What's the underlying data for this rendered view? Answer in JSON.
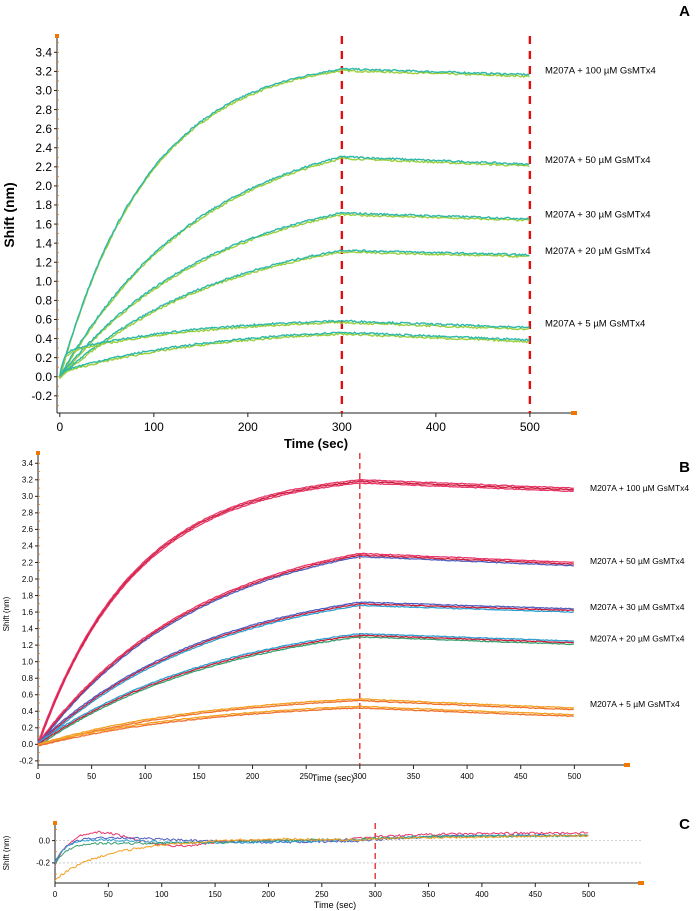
{
  "colors": {
    "axis": "#222222",
    "orange_tick": "#f07800",
    "red_dash": "#e01010",
    "grey_ref": "#aaaaaa",
    "A_series": [
      "#2eb8a8",
      "#9ccf3c"
    ],
    "B_series": [
      "#e8356a",
      "#cc1f3a",
      "#5060c0",
      "#30a0d0",
      "#3aa070",
      "#f07030",
      "#f4a020"
    ]
  },
  "chart_data": [
    {
      "panel_label": "A",
      "type": "line",
      "xlabel": "Time (sec)",
      "ylabel": "Shift (nm)",
      "xlim": [
        -3,
        548
      ],
      "ylim": [
        -0.38,
        3.55
      ],
      "xticks": [
        "0",
        "100",
        "200",
        "300",
        "400",
        "500"
      ],
      "yticks": [
        "-0.2",
        "0.0",
        "0.2",
        "0.4",
        "0.6",
        "0.8",
        "1.0",
        "1.2",
        "1.4",
        "1.6",
        "1.8",
        "2.0",
        "2.2",
        "2.4",
        "2.6",
        "2.8",
        "3.0",
        "3.2",
        "3.4"
      ],
      "vlines": [
        300,
        500
      ],
      "association_end": 300,
      "dissociation_end": 500,
      "series": [
        {
          "name": "M207A + 100 µM GsMTx4",
          "label": "M207A + 100 µM GsMTx4",
          "peak": 3.22,
          "end": 3.16,
          "init": 0.0,
          "rate": 0.0105
        },
        {
          "name": "M207A + 50 µM GsMTx4",
          "label": "M207A + 50 µM GsMTx4",
          "peak": 2.3,
          "end": 2.22,
          "init": 0.0,
          "rate": 0.0065
        },
        {
          "name": "M207A + 30 µM GsMTx4",
          "label": "M207A + 30 µM GsMTx4",
          "peak": 1.71,
          "end": 1.65,
          "init": 0.0,
          "rate": 0.006
        },
        {
          "name": "M207A + 20 µM GsMTx4",
          "label": "M207A + 20 µM GsMTx4",
          "peak": 1.32,
          "end": 1.27,
          "init": 0.0,
          "rate": 0.0055
        },
        {
          "name": "M207A + 5 µM GsMTx4",
          "label": "M207A + 5 µM GsMTx4",
          "peak": 0.58,
          "end": 0.51,
          "init": 0.25,
          "rate": 0.007
        },
        {
          "name": "",
          "label": "",
          "peak": 0.46,
          "end": 0.38,
          "init": 0.05,
          "rate": 0.006
        }
      ]
    },
    {
      "panel_label": "B",
      "type": "line",
      "xlabel": "Time (sec)",
      "ylabel": "Shift (nm)",
      "xlim": [
        0,
        550
      ],
      "ylim": [
        -0.25,
        3.5
      ],
      "xticks": [
        "0",
        "50",
        "100",
        "150",
        "200",
        "250",
        "300",
        "350",
        "400",
        "450",
        "500"
      ],
      "yticks": [
        "-0.2",
        "0.0",
        "0.2",
        "0.4",
        "0.6",
        "0.8",
        "1.0",
        "1.2",
        "1.4",
        "1.6",
        "1.8",
        "2.0",
        "2.2",
        "2.4",
        "2.6",
        "2.8",
        "3.0",
        "3.2",
        "3.4"
      ],
      "vlines": [
        300
      ],
      "association_end": 300,
      "dissociation_end": 500,
      "series": [
        {
          "name": "M207A + 100 µM GsMTx4",
          "label": "M207A + 100 µM GsMTx4",
          "peak": 3.18,
          "end": 3.08,
          "init": 0.0,
          "rate": 0.011
        },
        {
          "name": "M207A + 50 µM GsMTx4",
          "label": "M207A + 50 µM GsMTx4",
          "peak": 2.29,
          "end": 2.18,
          "init": 0.0,
          "rate": 0.0065
        },
        {
          "name": "M207A + 30 µM GsMTx4",
          "label": "M207A + 30 µM GsMTx4",
          "peak": 1.7,
          "end": 1.62,
          "init": 0.0,
          "rate": 0.006
        },
        {
          "name": "M207A + 20 µM GsMTx4",
          "label": "M207A + 20 µM GsMTx4",
          "peak": 1.32,
          "end": 1.23,
          "init": 0.0,
          "rate": 0.0055
        },
        {
          "name": "M207A + 5 µM GsMTx4",
          "label": "M207A + 5 µM GsMTx4",
          "peak": 0.55,
          "end": 0.44,
          "init": 0.0,
          "rate": 0.006
        },
        {
          "name": "",
          "label": "",
          "peak": 0.46,
          "end": 0.36,
          "init": 0.0,
          "rate": 0.006
        }
      ]
    },
    {
      "panel_label": "C",
      "type": "line",
      "xlabel": "Time (sec)",
      "ylabel": "Shift (nm)",
      "xlim": [
        0,
        550
      ],
      "ylim": [
        -0.38,
        0.14
      ],
      "xticks": [
        "0",
        "50",
        "100",
        "150",
        "200",
        "250",
        "300",
        "350",
        "400",
        "450",
        "500"
      ],
      "yticks": [
        "-0.2",
        "0.0"
      ],
      "vlines": [
        300
      ],
      "reflines": [
        0.0,
        -0.2
      ],
      "series": [
        {
          "name": "",
          "values_profile": "pink"
        },
        {
          "name": "",
          "values_profile": "blue"
        },
        {
          "name": "",
          "values_profile": "teal"
        },
        {
          "name": "",
          "values_profile": "green"
        },
        {
          "name": "",
          "values_profile": "orange"
        }
      ]
    }
  ]
}
